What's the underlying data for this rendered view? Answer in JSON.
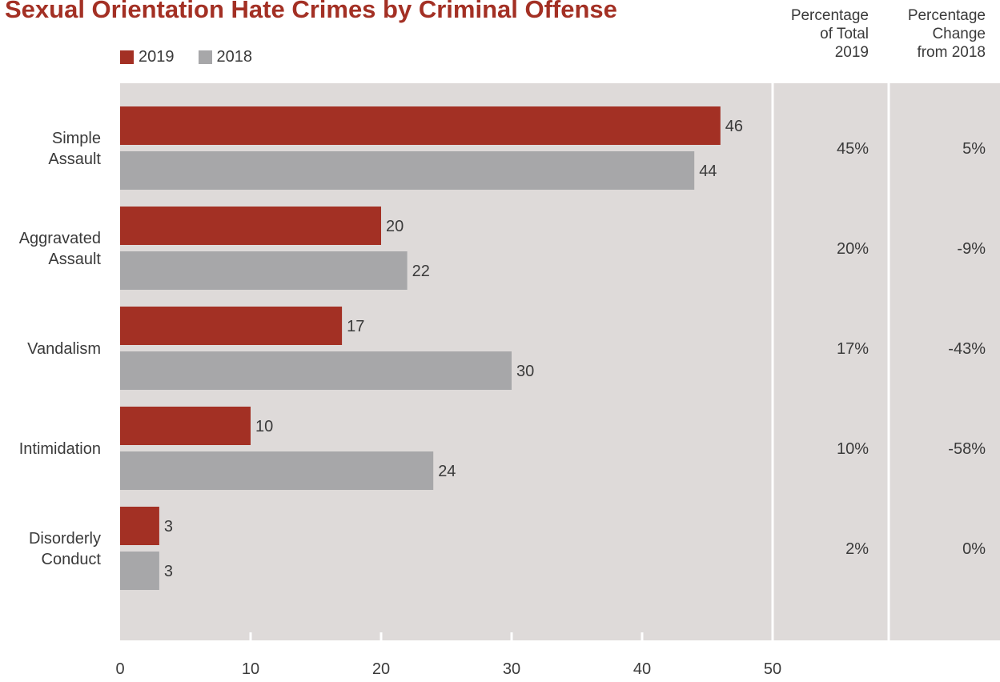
{
  "chart_data": {
    "type": "bar",
    "orientation": "horizontal",
    "title": "Sexual Orientation Hate Crimes by Criminal Offense",
    "categories": [
      "Simple\nAssault",
      "Aggravated\nAssault",
      "Vandalism",
      "Intimidation",
      "Disorderly\nConduct"
    ],
    "series": [
      {
        "name": "2019",
        "color": "#a33024",
        "values": [
          46,
          20,
          17,
          10,
          3
        ]
      },
      {
        "name": "2018",
        "color": "#a7a7a9",
        "values": [
          44,
          22,
          30,
          24,
          3
        ]
      }
    ],
    "xlim": [
      0,
      50
    ],
    "xticks": [
      0,
      10,
      20,
      30,
      40,
      50
    ],
    "grid": false,
    "legend": "top-left",
    "extra_columns": [
      {
        "header": [
          "Percentage",
          "of Total",
          "2019"
        ],
        "values": [
          "45%",
          "20%",
          "17%",
          "10%",
          "2%"
        ]
      },
      {
        "header": [
          "Percentage",
          "Change",
          "from 2018"
        ],
        "values": [
          "5%",
          "-9%",
          "-43%",
          "-58%",
          "0%"
        ]
      }
    ],
    "panel_color": "#dedad9",
    "text_color": "#3a3a3a"
  }
}
